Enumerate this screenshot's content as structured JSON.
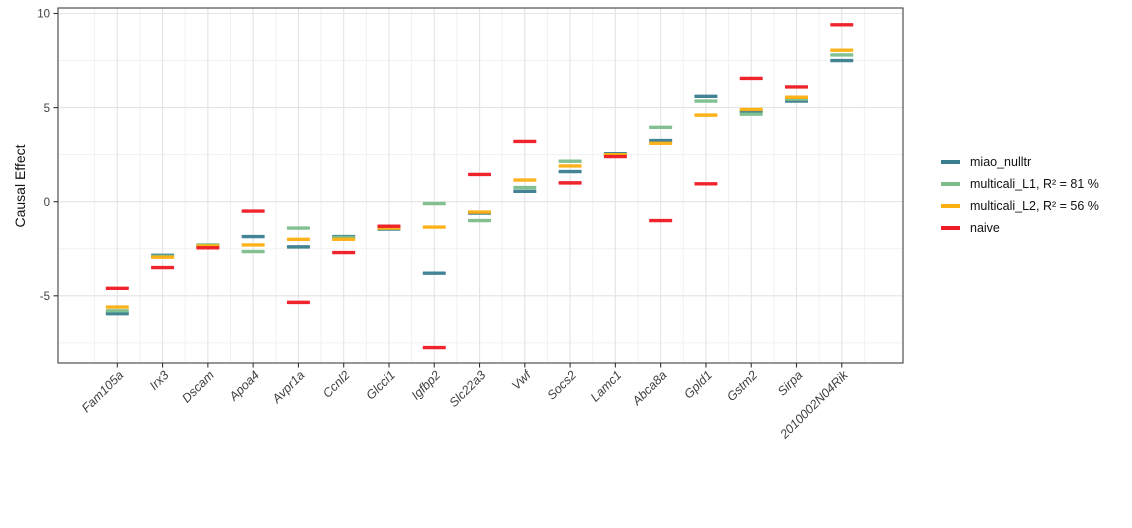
{
  "chart_data": {
    "type": "scatter",
    "marker_style": "horizontal-dash",
    "title": "",
    "xlabel": "",
    "ylabel": "Causal Effect",
    "ylim": [
      -8.5,
      10.3
    ],
    "yticks": [
      10,
      5,
      0,
      -5
    ],
    "yticks_minor": [
      7.5,
      2.5,
      -2.5,
      -7.5
    ],
    "grid": "major-and-minor",
    "legend_position": "right",
    "categories": [
      "Fam105a",
      "Irx3",
      "Dscam",
      "Apoa4",
      "Avpr1a",
      "Ccnl2",
      "Glcci1",
      "Igfbp2",
      "Slc22a3",
      "Vwf",
      "Socs2",
      "Lamc1",
      "Abca8a",
      "Gpld1",
      "Gstm2",
      "Sirpa",
      "2010002N04Rik"
    ],
    "series": [
      {
        "name": "miao_nulltr",
        "color": "#3a7f90",
        "values": [
          -5.95,
          -2.85,
          -2.35,
          -1.85,
          -2.4,
          -1.85,
          -1.45,
          -3.8,
          -0.6,
          0.55,
          1.6,
          2.55,
          3.25,
          5.6,
          4.8,
          5.35,
          7.5
        ]
      },
      {
        "name": "multicali_L1, R² = 81 %",
        "color": "#7dbd8c",
        "values": [
          -5.8,
          -2.9,
          -2.3,
          -2.65,
          -1.4,
          -1.9,
          -1.4,
          -0.1,
          -1.0,
          0.75,
          2.15,
          2.5,
          3.95,
          5.35,
          4.65,
          5.45,
          7.8
        ]
      },
      {
        "name": "multicali_L2, R² = 56 %",
        "color": "#fdb012",
        "values": [
          -5.6,
          -2.95,
          -2.35,
          -2.3,
          -2.0,
          -2.0,
          -1.4,
          -1.35,
          -0.55,
          1.15,
          1.9,
          2.5,
          3.1,
          4.6,
          4.9,
          5.55,
          8.05
        ]
      },
      {
        "name": "naive",
        "color": "#ee1b24",
        "values": [
          -4.6,
          -3.5,
          -2.45,
          -0.5,
          -5.35,
          -2.7,
          -1.3,
          -7.75,
          1.45,
          3.2,
          1.0,
          2.4,
          -1.0,
          0.95,
          6.55,
          6.1,
          9.4
        ]
      }
    ]
  }
}
